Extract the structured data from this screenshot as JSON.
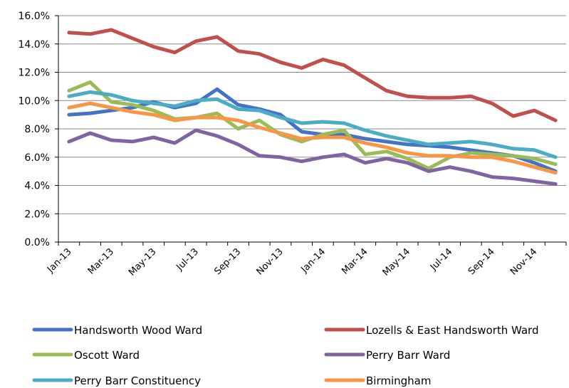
{
  "chart_data": {
    "type": "line",
    "title": "",
    "xlabel": "",
    "ylabel": "",
    "ylim": [
      0,
      16
    ],
    "y_ticks": [
      "0.0%",
      "2.0%",
      "4.0%",
      "6.0%",
      "8.0%",
      "10.0%",
      "12.0%",
      "14.0%",
      "16.0%"
    ],
    "x": [
      "Jan-13",
      "Feb-13",
      "Mar-13",
      "Apr-13",
      "May-13",
      "Jun-13",
      "Jul-13",
      "Aug-13",
      "Sep-13",
      "Oct-13",
      "Nov-13",
      "Dec-13",
      "Jan-14",
      "Feb-14",
      "Mar-14",
      "Apr-14",
      "May-14",
      "Jun-14",
      "Jul-14",
      "Aug-14",
      "Sep-14",
      "Oct-14",
      "Nov-14",
      "Dec-14"
    ],
    "x_tick_labels": [
      "Jan-13",
      "Mar-13",
      "May-13",
      "Jul-13",
      "Sep-13",
      "Nov-13",
      "Jan-14",
      "Mar-14",
      "May-14",
      "Jul-14",
      "Sep-14",
      "Nov-14"
    ],
    "grid": "horizontal",
    "legend": "bottom",
    "series": [
      {
        "name": "Handsworth Wood Ward",
        "color": "#4472C4",
        "values": [
          9.0,
          9.1,
          9.3,
          9.5,
          9.9,
          9.5,
          9.8,
          10.8,
          9.7,
          9.4,
          9.0,
          7.8,
          7.6,
          7.6,
          7.3,
          7.1,
          6.9,
          6.8,
          6.7,
          6.5,
          6.3,
          6.1,
          5.6,
          5.0
        ]
      },
      {
        "name": "Lozells & East Handsworth Ward",
        "color": "#C0504D",
        "values": [
          14.8,
          14.7,
          15.0,
          14.4,
          13.8,
          13.4,
          14.2,
          14.5,
          13.5,
          13.3,
          12.7,
          12.3,
          12.9,
          12.5,
          11.6,
          10.7,
          10.3,
          10.2,
          10.2,
          10.3,
          9.8,
          8.9,
          9.3,
          8.6
        ]
      },
      {
        "name": "Oscott Ward",
        "color": "#9BBB59",
        "values": [
          10.7,
          11.3,
          9.9,
          9.7,
          9.3,
          8.7,
          8.8,
          9.1,
          8.0,
          8.6,
          7.6,
          7.1,
          7.6,
          7.9,
          6.2,
          6.4,
          5.9,
          5.2,
          6.0,
          6.3,
          6.2,
          6.1,
          5.9,
          5.5
        ]
      },
      {
        "name": "Perry Barr Ward",
        "color": "#8064A2",
        "values": [
          7.1,
          7.7,
          7.2,
          7.1,
          7.4,
          7.0,
          7.9,
          7.5,
          6.9,
          6.1,
          6.0,
          5.7,
          6.0,
          6.2,
          5.6,
          5.9,
          5.6,
          5.0,
          5.3,
          5.0,
          4.6,
          4.5,
          4.3,
          4.1
        ]
      },
      {
        "name": "Perry Barr Constituency",
        "color": "#4BACC6",
        "values": [
          10.3,
          10.6,
          10.4,
          10.0,
          9.8,
          9.6,
          10.0,
          10.1,
          9.4,
          9.3,
          8.8,
          8.4,
          8.5,
          8.4,
          7.9,
          7.5,
          7.2,
          6.9,
          7.0,
          7.1,
          6.9,
          6.6,
          6.5,
          6.0
        ]
      },
      {
        "name": "Birmingham",
        "color": "#F79646",
        "values": [
          9.5,
          9.8,
          9.5,
          9.2,
          9.0,
          8.6,
          8.8,
          8.8,
          8.6,
          8.1,
          7.7,
          7.3,
          7.4,
          7.4,
          7.0,
          6.7,
          6.3,
          6.1,
          6.1,
          6.0,
          6.0,
          5.7,
          5.3,
          4.9
        ]
      }
    ]
  }
}
